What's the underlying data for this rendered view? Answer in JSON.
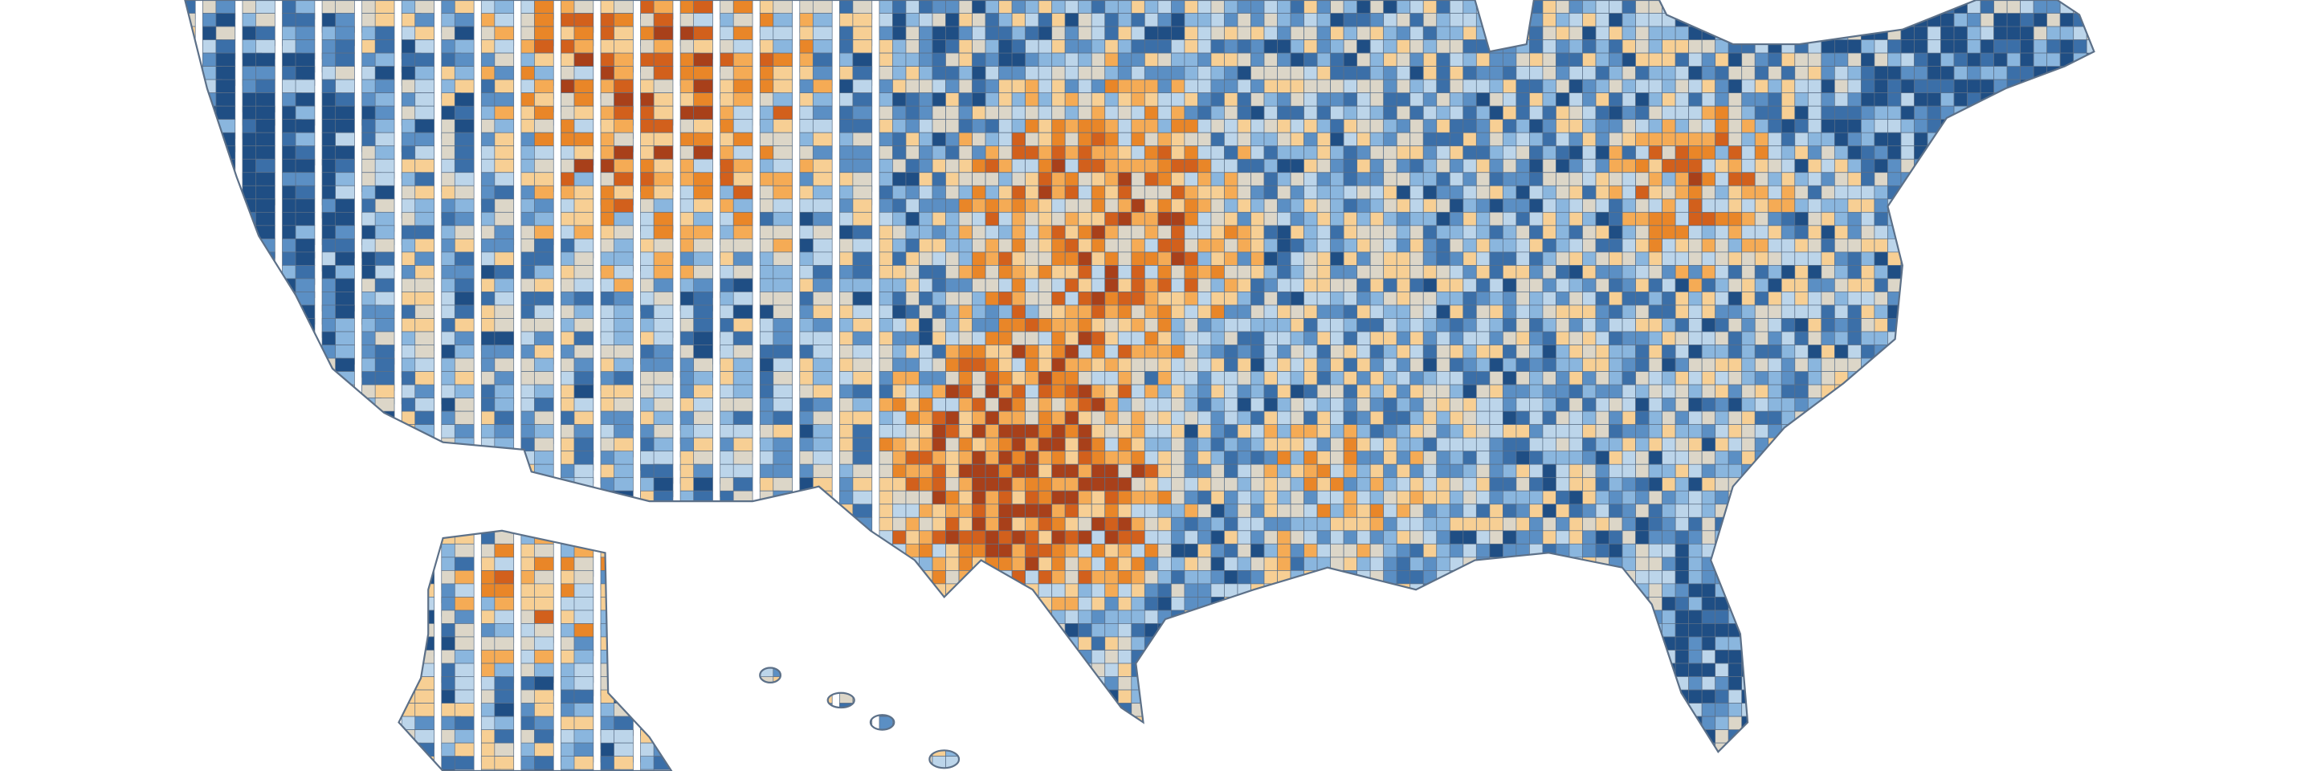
{
  "map": {
    "palette": [
      "#1f4e84",
      "#3b6fa8",
      "#5b8fc4",
      "#8ab6de",
      "#bcd5ea",
      "#dcd6c8",
      "#f7cf94",
      "#f5ab55",
      "#e98628",
      "#d2601c",
      "#a8401a"
    ],
    "border_color": "#5c7088"
  }
}
